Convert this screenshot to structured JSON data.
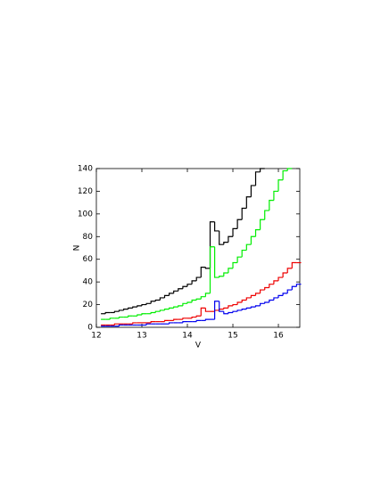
{
  "chart_data": {
    "type": "line",
    "step": true,
    "x_label": "V",
    "y_label": "N",
    "x": [
      12.1,
      12.2,
      12.3,
      12.4,
      12.5,
      12.6,
      12.7,
      12.8,
      12.9,
      13.0,
      13.1,
      13.2,
      13.3,
      13.4,
      13.5,
      13.6,
      13.7,
      13.8,
      13.9,
      14.0,
      14.1,
      14.2,
      14.3,
      14.4,
      14.5,
      14.6,
      14.7,
      14.8,
      14.9,
      15.0,
      15.1,
      15.2,
      15.3,
      15.4,
      15.5,
      15.6,
      15.7,
      15.8,
      15.9,
      16.0,
      16.1,
      16.2,
      16.3,
      16.4
    ],
    "series": [
      {
        "name": "black",
        "color": "#000000",
        "values": [
          12,
          13,
          13,
          14,
          15,
          16,
          17,
          18,
          19,
          20,
          21,
          23,
          24,
          26,
          28,
          30,
          32,
          34,
          36,
          38,
          41,
          44,
          53,
          52,
          93,
          85,
          73,
          75,
          80,
          87,
          95,
          105,
          115,
          125,
          137,
          140,
          null,
          null,
          null,
          null,
          null,
          null,
          null,
          null
        ]
      },
      {
        "name": "green",
        "color": "#00ee00",
        "values": [
          7,
          7,
          8,
          8,
          9,
          9,
          10,
          10,
          11,
          12,
          12,
          13,
          14,
          15,
          16,
          17,
          18,
          19,
          21,
          22,
          24,
          25,
          27,
          30,
          71,
          44,
          45,
          48,
          52,
          57,
          62,
          68,
          73,
          80,
          86,
          95,
          103,
          112,
          120,
          130,
          138,
          140,
          null,
          null
        ]
      },
      {
        "name": "red",
        "color": "#ee0000",
        "values": [
          2,
          2,
          2,
          3,
          3,
          3,
          3,
          4,
          4,
          4,
          4,
          5,
          5,
          5,
          6,
          6,
          7,
          7,
          8,
          8,
          9,
          10,
          17,
          14,
          14,
          15,
          16,
          17,
          19,
          20,
          22,
          24,
          26,
          28,
          30,
          33,
          35,
          38,
          41,
          44,
          48,
          52,
          57,
          57
        ]
      },
      {
        "name": "blue",
        "color": "#0000ee",
        "values": [
          1,
          1,
          1,
          1,
          2,
          2,
          2,
          2,
          2,
          2,
          3,
          3,
          3,
          3,
          3,
          4,
          4,
          4,
          5,
          5,
          5,
          6,
          6,
          7,
          7,
          23,
          14,
          12,
          13,
          14,
          15,
          16,
          17,
          18,
          19,
          21,
          22,
          24,
          26,
          28,
          30,
          33,
          36,
          38
        ]
      }
    ],
    "xlim": [
      12,
      16.47
    ],
    "ylim": [
      0,
      140
    ],
    "xticks": [
      12,
      13,
      14,
      15,
      16
    ],
    "yticks": [
      0,
      20,
      40,
      60,
      80,
      100,
      120,
      140
    ]
  }
}
